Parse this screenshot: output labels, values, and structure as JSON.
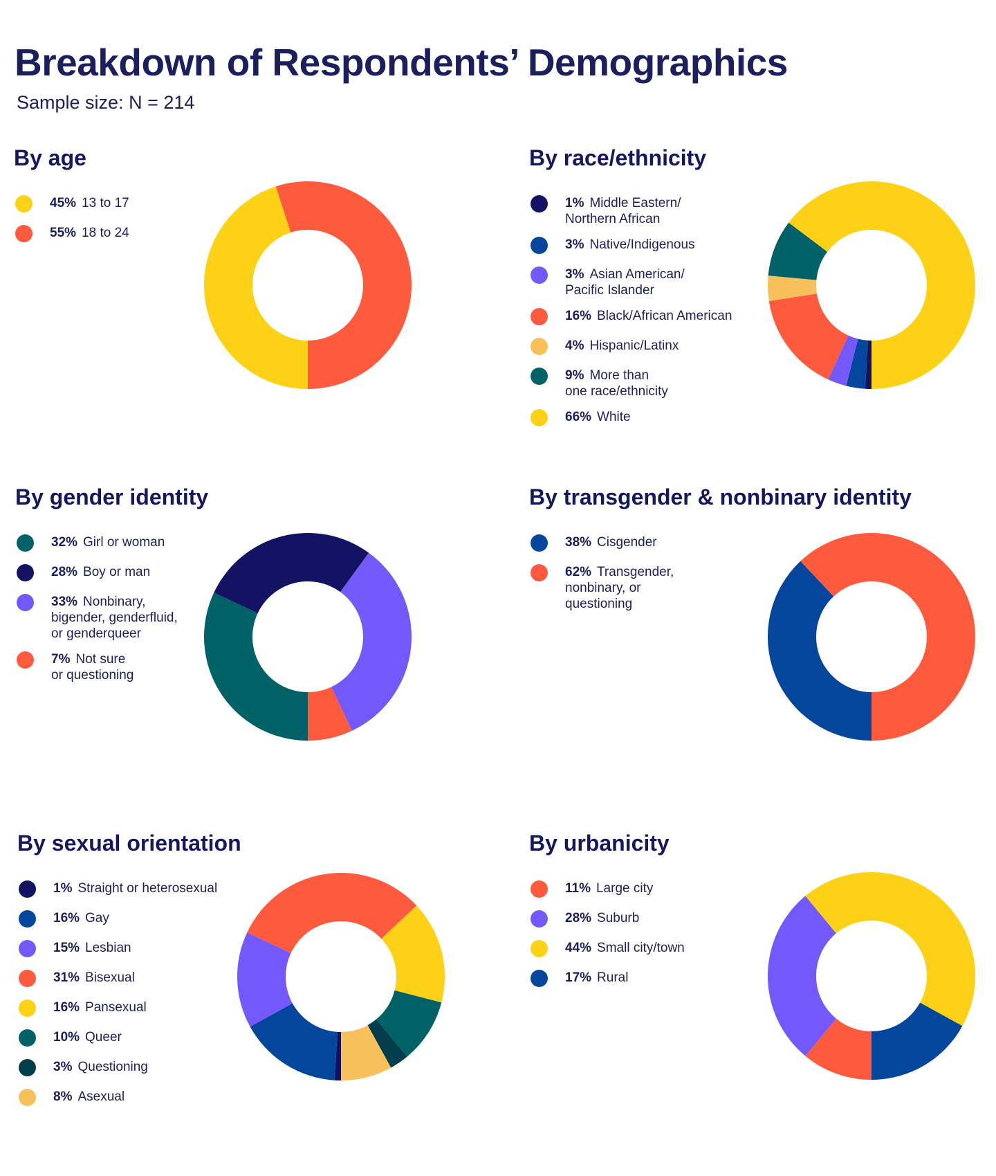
{
  "title": "Breakdown of Respondents’ Demographics",
  "subtitle": "Sample size: N = 214",
  "colors": {
    "navy": "#131263",
    "blue": "#03469b",
    "purple": "#7359fb",
    "coral": "#fe5b3e",
    "peach": "#f7c05b",
    "teal": "#006266",
    "yellow": "#fdd216",
    "darkteal": "#043d4b"
  },
  "chart_data": [
    {
      "type": "pie",
      "title": "By age",
      "slices": [
        {
          "pct": "45%",
          "label": "13 to 17",
          "value": 45,
          "color": "#fdd216"
        },
        {
          "pct": "55%",
          "label": "18 to 24",
          "value": 55,
          "color": "#fe5b3e"
        }
      ]
    },
    {
      "type": "pie",
      "title": "By race/ethnicity",
      "slices": [
        {
          "pct": "1%",
          "label": "Middle Eastern/\nNorthern African",
          "value": 1,
          "color": "#131263"
        },
        {
          "pct": "3%",
          "label": "Native/Indigenous",
          "value": 3,
          "color": "#03469b"
        },
        {
          "pct": "3%",
          "label": "Asian American/\nPacific Islander",
          "value": 3,
          "color": "#7359fb"
        },
        {
          "pct": "16%",
          "label": "Black/African American",
          "value": 16,
          "color": "#fe5b3e"
        },
        {
          "pct": "4%",
          "label": "Hispanic/Latinx",
          "value": 4,
          "color": "#f7c05b"
        },
        {
          "pct": "9%",
          "label": "More than\none race/ethnicity",
          "value": 9,
          "color": "#006266"
        },
        {
          "pct": "66%",
          "label": "White",
          "value": 66,
          "color": "#fdd216"
        }
      ]
    },
    {
      "type": "pie",
      "title": "By gender identity",
      "slices": [
        {
          "pct": "32%",
          "label": "Girl or woman",
          "value": 32,
          "color": "#006266"
        },
        {
          "pct": "28%",
          "label": "Boy or man",
          "value": 28,
          "color": "#131263"
        },
        {
          "pct": "33%",
          "label": "Nonbinary,\nbigender, genderfluid,\nor genderqueer",
          "value": 33,
          "color": "#7359fb"
        },
        {
          "pct": "7%",
          "label": "Not sure\nor questioning",
          "value": 7,
          "color": "#fe5b3e"
        }
      ]
    },
    {
      "type": "pie",
      "title": "By transgender & nonbinary identity",
      "slices": [
        {
          "pct": "38%",
          "label": "Cisgender",
          "value": 38,
          "color": "#03469b"
        },
        {
          "pct": "62%",
          "label": "Transgender,\nnonbinary, or\nquestioning",
          "value": 62,
          "color": "#fe5b3e"
        }
      ]
    },
    {
      "type": "pie",
      "title": "By sexual orientation",
      "slices": [
        {
          "pct": "1%",
          "label": "Straight or heterosexual",
          "value": 1,
          "color": "#131263"
        },
        {
          "pct": "16%",
          "label": "Gay",
          "value": 16,
          "color": "#03469b"
        },
        {
          "pct": "15%",
          "label": "Lesbian",
          "value": 15,
          "color": "#7359fb"
        },
        {
          "pct": "31%",
          "label": "Bisexual",
          "value": 31,
          "color": "#fe5b3e"
        },
        {
          "pct": "16%",
          "label": "Pansexual",
          "value": 16,
          "color": "#fdd216"
        },
        {
          "pct": "10%",
          "label": "Queer",
          "value": 10,
          "color": "#006266"
        },
        {
          "pct": "3%",
          "label": "Questioning",
          "value": 3,
          "color": "#043d4b"
        },
        {
          "pct": "8%",
          "label": "Asexual",
          "value": 8,
          "color": "#f7c05b"
        }
      ]
    },
    {
      "type": "pie",
      "title": "By urbanicity",
      "slices": [
        {
          "pct": "11%",
          "label": "Large city",
          "value": 11,
          "color": "#fe5b3e"
        },
        {
          "pct": "28%",
          "label": "Suburb",
          "value": 28,
          "color": "#7359fb"
        },
        {
          "pct": "44%",
          "label": "Small city/town",
          "value": 44,
          "color": "#fdd216"
        },
        {
          "pct": "17%",
          "label": "Rural",
          "value": 17,
          "color": "#03469b"
        }
      ]
    }
  ]
}
